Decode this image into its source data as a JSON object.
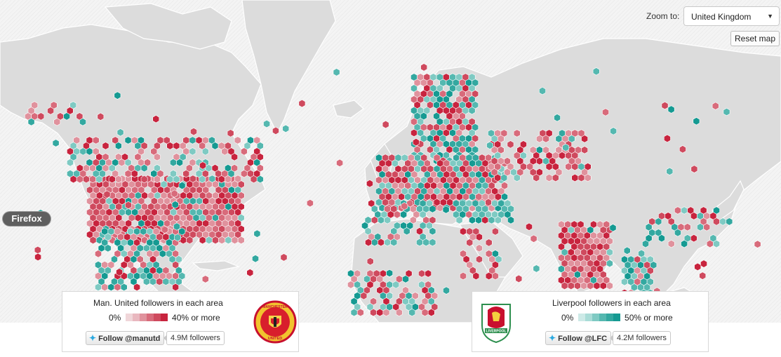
{
  "controls": {
    "zoom_label": "Zoom to:",
    "zoom_value": "United Kingdom",
    "reset_label": "Reset map"
  },
  "firefox_tag": "Firefox",
  "legend_mu": {
    "title": "Man. United followers in each area",
    "min_label": "0%",
    "max_label": "40% or more",
    "ramp_colors": [
      "#f0d6d9",
      "#e9b8bf",
      "#e0929d",
      "#d86b7b",
      "#cf4a5e",
      "#c8243e"
    ],
    "follow_label": "Follow @manutd",
    "follower_count": "4.9M followers",
    "crest_text_top": "MANCHESTER",
    "crest_text_bottom": "UNITED"
  },
  "legend_lfc": {
    "title": "Liverpool followers in each area",
    "min_label": "0%",
    "max_label": "50% or more",
    "ramp_colors": [
      "#cdeae7",
      "#a9dcd7",
      "#7fcac3",
      "#55b8b0",
      "#33a8a0",
      "#159a92"
    ],
    "follow_label": "Follow @LFC",
    "follower_count": "4.2M followers",
    "crest_text": "LIVERPOOL"
  },
  "colors": {
    "manutd_red": "#d6455c",
    "liverpool_teal": "#3aaea5",
    "land": "#dcdcdc"
  }
}
